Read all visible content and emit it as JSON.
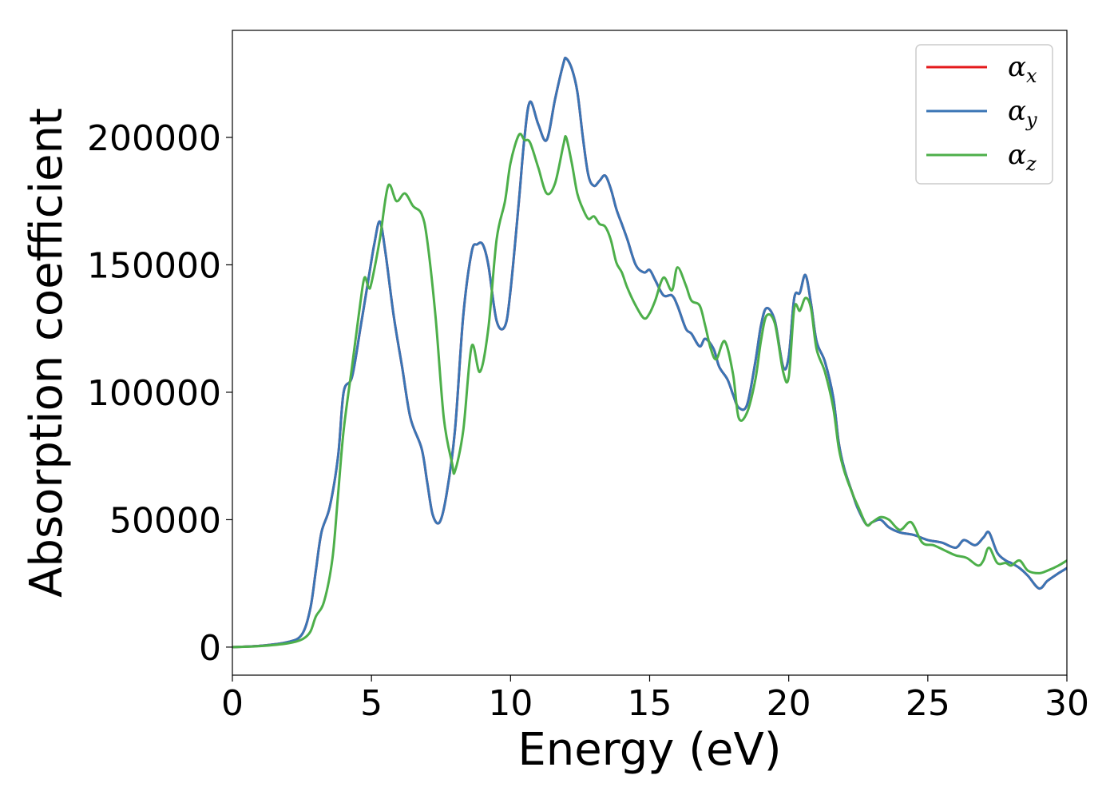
{
  "chart_data": {
    "type": "line",
    "title": "",
    "xlabel": "Energy (eV)",
    "ylabel": "Absorption coefficient",
    "xlim": [
      0,
      30
    ],
    "ylim": [
      -11000,
      242000
    ],
    "xticks": [
      0,
      5,
      10,
      15,
      20,
      25,
      30
    ],
    "xtick_labels": [
      "0",
      "5",
      "10",
      "15",
      "20",
      "25",
      "30"
    ],
    "yticks": [
      0,
      50000,
      100000,
      150000,
      200000
    ],
    "ytick_labels": [
      "0",
      "50000",
      "100000",
      "150000",
      "200000"
    ],
    "grid": false,
    "legend_position": "top-right",
    "series": [
      {
        "name": "α_x",
        "legend_base": "α",
        "legend_sub": "x",
        "color": "#e41a1c",
        "x": [
          0,
          1,
          2,
          2.5,
          2.8,
          3.0,
          3.2,
          3.5,
          3.8,
          4.0,
          4.3,
          4.6,
          4.9,
          5.1,
          5.3,
          5.5,
          5.8,
          6.1,
          6.4,
          6.8,
          7.0,
          7.2,
          7.45,
          7.7,
          8.0,
          8.3,
          8.6,
          8.8,
          9.0,
          9.2,
          9.5,
          9.8,
          10.0,
          10.3,
          10.5,
          10.7,
          11.0,
          11.3,
          11.6,
          11.9,
          12.0,
          12.2,
          12.4,
          12.6,
          12.8,
          13.0,
          13.2,
          13.4,
          13.6,
          13.8,
          14.0,
          14.2,
          14.5,
          14.8,
          15.0,
          15.2,
          15.5,
          15.8,
          16.0,
          16.3,
          16.5,
          16.8,
          17.0,
          17.3,
          17.5,
          17.8,
          18.0,
          18.2,
          18.5,
          18.8,
          19.0,
          19.2,
          19.5,
          19.8,
          20.0,
          20.2,
          20.4,
          20.6,
          20.8,
          21.0,
          21.3,
          21.6,
          21.8,
          22.0,
          22.3,
          22.5,
          22.8,
          23.0,
          23.3,
          23.6,
          24.0,
          24.5,
          25.0,
          25.5,
          26.0,
          26.3,
          26.7,
          27.0,
          27.2,
          27.5,
          27.8,
          28.0,
          28.3,
          28.6,
          29.0,
          29.3,
          29.7,
          30.0
        ],
        "y": [
          0,
          500,
          2000,
          5000,
          15000,
          30000,
          45000,
          55000,
          75000,
          100000,
          106000,
          125000,
          145000,
          158000,
          167000,
          155000,
          130000,
          110000,
          90000,
          78000,
          65000,
          52000,
          49000,
          60000,
          85000,
          130000,
          155000,
          158000,
          158000,
          150000,
          128000,
          126000,
          140000,
          175000,
          200000,
          214000,
          205000,
          199000,
          215000,
          229000,
          231000,
          227000,
          218000,
          200000,
          185000,
          181000,
          183000,
          185000,
          180000,
          172000,
          166000,
          160000,
          150000,
          147000,
          148000,
          144000,
          138000,
          138000,
          134000,
          125000,
          123000,
          118000,
          121000,
          117000,
          110000,
          105000,
          99000,
          94000,
          95000,
          112000,
          126000,
          133000,
          128000,
          110000,
          114000,
          137000,
          139000,
          146000,
          135000,
          120000,
          112000,
          98000,
          80000,
          70000,
          60000,
          54000,
          48000,
          49000,
          50000,
          47000,
          45000,
          44000,
          42000,
          41000,
          39000,
          42000,
          40000,
          43000,
          45000,
          37000,
          34000,
          33000,
          31000,
          28000,
          23000,
          26000,
          29000,
          31000
        ]
      },
      {
        "name": "α_y",
        "legend_base": "α",
        "legend_sub": "y",
        "color": "#3a75b5",
        "x": [
          0,
          1,
          2,
          2.5,
          2.8,
          3.0,
          3.2,
          3.5,
          3.8,
          4.0,
          4.3,
          4.6,
          4.9,
          5.1,
          5.3,
          5.5,
          5.8,
          6.1,
          6.4,
          6.8,
          7.0,
          7.2,
          7.45,
          7.7,
          8.0,
          8.3,
          8.6,
          8.8,
          9.0,
          9.2,
          9.5,
          9.8,
          10.0,
          10.3,
          10.5,
          10.7,
          11.0,
          11.3,
          11.6,
          11.9,
          12.0,
          12.2,
          12.4,
          12.6,
          12.8,
          13.0,
          13.2,
          13.4,
          13.6,
          13.8,
          14.0,
          14.2,
          14.5,
          14.8,
          15.0,
          15.2,
          15.5,
          15.8,
          16.0,
          16.3,
          16.5,
          16.8,
          17.0,
          17.3,
          17.5,
          17.8,
          18.0,
          18.2,
          18.5,
          18.8,
          19.0,
          19.2,
          19.5,
          19.8,
          20.0,
          20.2,
          20.4,
          20.6,
          20.8,
          21.0,
          21.3,
          21.6,
          21.8,
          22.0,
          22.3,
          22.5,
          22.8,
          23.0,
          23.3,
          23.6,
          24.0,
          24.5,
          25.0,
          25.5,
          26.0,
          26.3,
          26.7,
          27.0,
          27.2,
          27.5,
          27.8,
          28.0,
          28.3,
          28.6,
          29.0,
          29.3,
          29.7,
          30.0
        ],
        "y": [
          0,
          500,
          2000,
          5000,
          15000,
          30000,
          45000,
          55000,
          75000,
          100000,
          106000,
          125000,
          145000,
          158000,
          167000,
          155000,
          130000,
          110000,
          90000,
          78000,
          65000,
          52000,
          49000,
          60000,
          85000,
          130000,
          155000,
          158000,
          158000,
          150000,
          128000,
          126000,
          140000,
          175000,
          200000,
          214000,
          205000,
          199000,
          215000,
          229000,
          231000,
          227000,
          218000,
          200000,
          185000,
          181000,
          183000,
          185000,
          180000,
          172000,
          166000,
          160000,
          150000,
          147000,
          148000,
          144000,
          138000,
          138000,
          134000,
          125000,
          123000,
          118000,
          121000,
          117000,
          110000,
          105000,
          99000,
          94000,
          95000,
          112000,
          126000,
          133000,
          128000,
          110000,
          114000,
          137000,
          139000,
          146000,
          135000,
          120000,
          112000,
          98000,
          80000,
          70000,
          60000,
          54000,
          48000,
          49000,
          50000,
          47000,
          45000,
          44000,
          42000,
          41000,
          39000,
          42000,
          40000,
          43000,
          45000,
          37000,
          34000,
          33000,
          31000,
          28000,
          23000,
          26000,
          29000,
          31000
        ]
      },
      {
        "name": "α_z",
        "legend_base": "α",
        "legend_sub": "z",
        "color": "#4daf4a",
        "x": [
          0,
          1,
          2,
          2.5,
          2.8,
          3.0,
          3.3,
          3.6,
          3.8,
          4.0,
          4.3,
          4.6,
          4.75,
          4.9,
          5.0,
          5.3,
          5.6,
          5.9,
          6.2,
          6.5,
          6.8,
          7.0,
          7.3,
          7.6,
          7.9,
          8.0,
          8.3,
          8.6,
          8.9,
          9.2,
          9.5,
          9.8,
          10.0,
          10.3,
          10.5,
          10.7,
          11.0,
          11.3,
          11.6,
          11.9,
          12.0,
          12.2,
          12.4,
          12.6,
          12.8,
          13.0,
          13.2,
          13.4,
          13.6,
          13.8,
          14.0,
          14.2,
          14.5,
          14.8,
          15.0,
          15.2,
          15.5,
          15.8,
          16.0,
          16.3,
          16.5,
          16.8,
          17.0,
          17.2,
          17.4,
          17.7,
          18.0,
          18.2,
          18.5,
          18.8,
          19.0,
          19.2,
          19.5,
          19.8,
          20.0,
          20.2,
          20.4,
          20.6,
          20.8,
          21.0,
          21.3,
          21.6,
          21.8,
          22.0,
          22.3,
          22.5,
          22.8,
          23.0,
          23.3,
          23.6,
          24.0,
          24.4,
          24.8,
          25.2,
          25.6,
          26.0,
          26.4,
          26.8,
          27.0,
          27.2,
          27.5,
          27.8,
          28.0,
          28.3,
          28.6,
          29.0,
          29.3,
          29.7,
          30.0
        ],
        "y": [
          0,
          400,
          1500,
          3000,
          6000,
          12000,
          18000,
          35000,
          60000,
          85000,
          110000,
          135000,
          145000,
          141000,
          143000,
          160000,
          181000,
          175000,
          178000,
          173000,
          170000,
          160000,
          130000,
          90000,
          72000,
          69000,
          85000,
          118000,
          108000,
          125000,
          160000,
          175000,
          190000,
          201000,
          199000,
          198000,
          188000,
          178000,
          182000,
          197000,
          200000,
          190000,
          178000,
          172000,
          168000,
          169000,
          166000,
          165000,
          160000,
          151000,
          147000,
          141000,
          134000,
          129000,
          131000,
          136000,
          145000,
          140000,
          149000,
          142000,
          136000,
          134000,
          126000,
          117000,
          113000,
          120000,
          107000,
          90000,
          92000,
          105000,
          120000,
          130000,
          127000,
          108000,
          106000,
          133000,
          132000,
          137000,
          133000,
          117000,
          108000,
          94000,
          78000,
          69000,
          60000,
          55000,
          48000,
          49000,
          51000,
          50000,
          46000,
          49000,
          41000,
          40000,
          38000,
          36000,
          35000,
          32000,
          34000,
          39000,
          33000,
          33000,
          32000,
          34000,
          30000,
          29000,
          30000,
          32000,
          34000
        ]
      }
    ]
  }
}
